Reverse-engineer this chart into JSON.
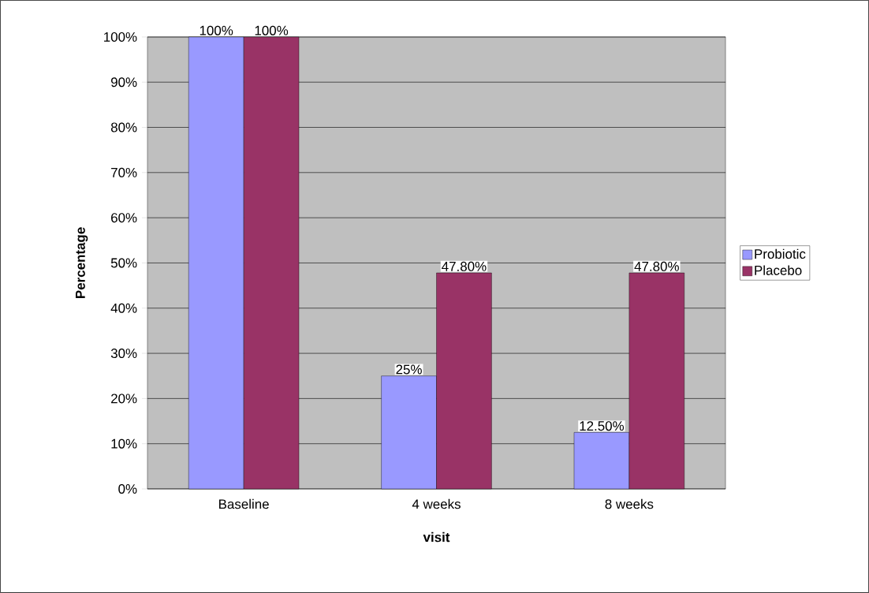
{
  "chart_data": {
    "type": "bar",
    "categories": [
      "Baseline",
      "4 weeks",
      "8 weeks"
    ],
    "series": [
      {
        "name": "Probiotic",
        "color": "#9999ff",
        "values": [
          100,
          25,
          12.5
        ],
        "value_labels": [
          "100%",
          "25%",
          "12.50%"
        ]
      },
      {
        "name": "Placebo",
        "color": "#993366",
        "values": [
          100,
          47.8,
          47.8
        ],
        "value_labels": [
          "100%",
          "47.80%",
          "47.80%"
        ]
      }
    ],
    "xlabel": "visit",
    "ylabel": "Percentage",
    "ylim": [
      0,
      100
    ],
    "yticks": [
      {
        "value": 0,
        "label": "0%"
      },
      {
        "value": 10,
        "label": "10%"
      },
      {
        "value": 20,
        "label": "20%"
      },
      {
        "value": 30,
        "label": "30%"
      },
      {
        "value": 40,
        "label": "40%"
      },
      {
        "value": 50,
        "label": "50%"
      },
      {
        "value": 60,
        "label": "60%"
      },
      {
        "value": 70,
        "label": "70%"
      },
      {
        "value": 80,
        "label": "80%"
      },
      {
        "value": 90,
        "label": "90%"
      },
      {
        "value": 100,
        "label": "100%"
      }
    ],
    "grid": "y",
    "legend": "right"
  }
}
